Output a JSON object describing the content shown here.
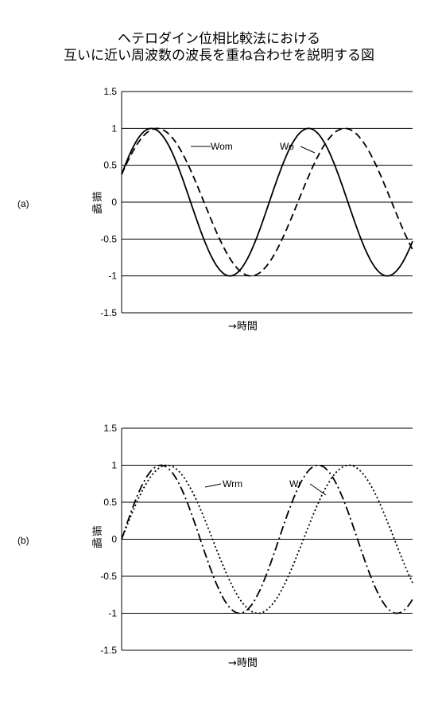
{
  "title": {
    "line1": "ヘテロダイン位相比較法における",
    "line2": "互いに近い周波数の波長を重ね合わせを説明する図"
  },
  "chart_data": [
    {
      "type": "line",
      "panel_label": "(a)",
      "ylabel": "振幅",
      "xlabel": "→時間",
      "ylim": [
        -1.5,
        1.5
      ],
      "yticks": [
        "1.5",
        "1",
        "0.5",
        "0",
        "-0.5",
        "-1",
        "-1.5"
      ],
      "grid": true,
      "series": [
        {
          "name": "Wo",
          "style": "solid",
          "color": "#000000",
          "amplitude": 1.0,
          "cycles": 1.85,
          "phase_deg": 22
        },
        {
          "name": "Wom",
          "style": "dashed",
          "color": "#000000",
          "amplitude": 1.0,
          "cycles": 1.55,
          "phase_deg": 22
        }
      ]
    },
    {
      "type": "line",
      "panel_label": "(b)",
      "ylabel": "振幅",
      "xlabel": "→時間",
      "ylim": [
        -1.5,
        1.5
      ],
      "yticks": [
        "1.5",
        "1",
        "0.5",
        "0",
        "-0.5",
        "-1",
        "-1.5"
      ],
      "grid": true,
      "series": [
        {
          "name": "Wr",
          "style": "dash-dot",
          "color": "#000000",
          "amplitude": 1.0,
          "cycles": 1.85,
          "phase_deg": 0
        },
        {
          "name": "Wrm",
          "style": "dotted",
          "color": "#000000",
          "amplitude": 1.0,
          "cycles": 1.6,
          "phase_deg": 0
        }
      ]
    }
  ]
}
